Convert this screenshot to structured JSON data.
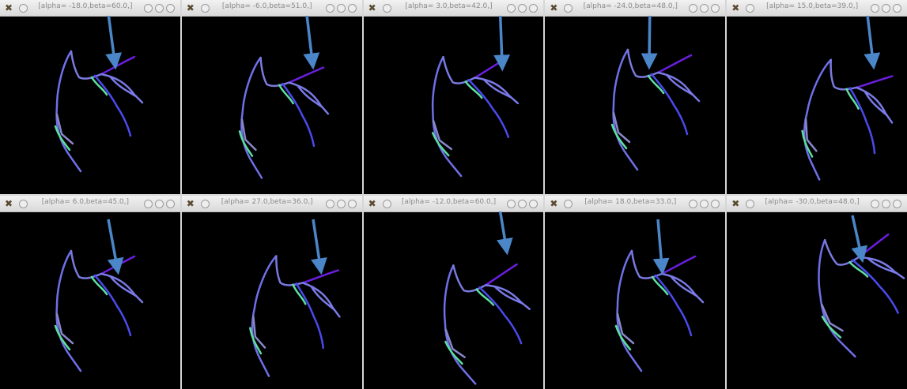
{
  "windows": [
    {
      "title": "[alpha= -18.0,beta=60.0,]"
    },
    {
      "title": "[alpha= -6.0,beta=51.0,]"
    },
    {
      "title": "[alpha= 3.0,beta=42.0,]"
    },
    {
      "title": "[alpha= -24.0,beta=48.0,]"
    },
    {
      "title": "[alpha= 15.0,beta=39.0,]"
    },
    {
      "title": "[alpha= 6.0,beta=45.0,]"
    },
    {
      "title": "[alpha= 27.0,beta=36.0,]"
    },
    {
      "title": "[alpha= -12.0,beta=60.0,]"
    },
    {
      "title": "[alpha= 18.0,beta=33.0,]"
    },
    {
      "title": "[alpha= -30.0,beta=48.0,]"
    }
  ]
}
